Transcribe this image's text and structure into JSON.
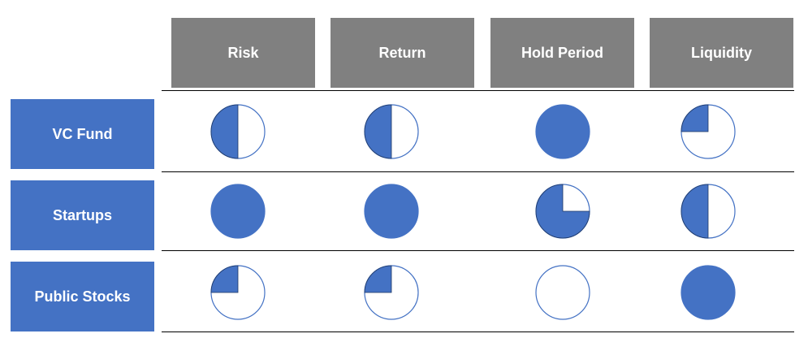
{
  "colors": {
    "header_bg": "#808080",
    "row_bg": "#4472c4",
    "ball_fill": "#4472c4",
    "ball_stroke": "#4472c4"
  },
  "columns": [
    "Risk",
    "Return",
    "Hold Period",
    "Liquidity"
  ],
  "rows": [
    {
      "label": "VC Fund",
      "ratings": [
        0.5,
        0.5,
        1.0,
        0.25
      ]
    },
    {
      "label": "Startups",
      "ratings": [
        1.0,
        1.0,
        0.75,
        0.5
      ]
    },
    {
      "label": "Public Stocks",
      "ratings": [
        0.25,
        0.25,
        0.0,
        1.0
      ]
    }
  ]
}
